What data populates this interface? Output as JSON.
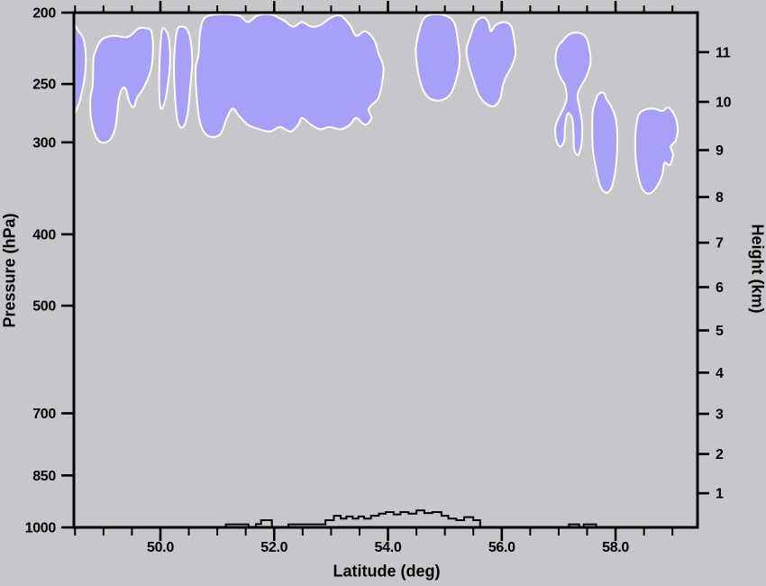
{
  "chart_data": {
    "type": "filled-contour cross-section (cloud occurrence vs latitude and pressure)",
    "title": "",
    "xlabel": "Latitude (deg)",
    "ylabel_left": "Pressure (hPa)",
    "ylabel_right": "Height (km)",
    "x_axis": {
      "min": 48.48,
      "max": 59.44,
      "major_ticks": [
        50.0,
        52.0,
        54.0,
        56.0,
        58.0
      ],
      "major_tick_labels": [
        "50.0",
        "52.0",
        "54.0",
        "56.0",
        "58.0"
      ],
      "minor_tick_interval": 0.5,
      "minor_tick_start": 48.5,
      "minor_tick_end": 59.0
    },
    "y_axis_pressure": {
      "scale": "log",
      "min_hpa": 200,
      "max_hpa": 1000,
      "ticks": [
        200,
        250,
        300,
        400,
        500,
        700,
        850,
        1000
      ],
      "tick_labels": [
        "200",
        "250",
        "300",
        "400",
        "500",
        "700",
        "850",
        "1000"
      ]
    },
    "y_axis_height_km": {
      "ticks": [
        1,
        2,
        3,
        4,
        5,
        6,
        7,
        8,
        9,
        10,
        11
      ],
      "tick_labels": [
        "1",
        "2",
        "3",
        "4",
        "5",
        "6",
        "7",
        "8",
        "9",
        "10",
        "11"
      ],
      "note": "height ticks follow ICAO standard atmosphere mapping to log-pressure axis"
    },
    "colors": {
      "background": "#c7c7cb",
      "cloud_fill": "#a6a0f8",
      "cloud_outline": "#ffffff",
      "axis": "#000000",
      "terrain_line": "#000000"
    },
    "grid": "off",
    "legend": "none",
    "cloud_regions": [
      {
        "name": "left-edge sliver",
        "points": [
          [
            48.4,
            210
          ],
          [
            48.58,
            213
          ],
          [
            48.66,
            219
          ],
          [
            48.69,
            232
          ],
          [
            48.66,
            248
          ],
          [
            48.61,
            258
          ],
          [
            48.55,
            268
          ],
          [
            48.4,
            274
          ]
        ]
      },
      {
        "name": "left blob 49-50deg",
        "points": [
          [
            48.81,
            251
          ],
          [
            48.82,
            235
          ],
          [
            48.84,
            228
          ],
          [
            48.96,
            218
          ],
          [
            49.16,
            215
          ],
          [
            49.4,
            216
          ],
          [
            49.5,
            214
          ],
          [
            49.62,
            210
          ],
          [
            49.74,
            210
          ],
          [
            49.84,
            212
          ],
          [
            49.87,
            224
          ],
          [
            49.84,
            238
          ],
          [
            49.76,
            248
          ],
          [
            49.68,
            255
          ],
          [
            49.59,
            261
          ],
          [
            49.53,
            269
          ],
          [
            49.45,
            264
          ],
          [
            49.4,
            255
          ],
          [
            49.34,
            253
          ],
          [
            49.27,
            262
          ],
          [
            49.21,
            286
          ],
          [
            49.11,
            298
          ],
          [
            48.96,
            300
          ],
          [
            48.86,
            294
          ],
          [
            48.78,
            278
          ],
          [
            48.77,
            262
          ]
        ]
      },
      {
        "name": "strip at 50.1deg",
        "points": [
          [
            50.03,
            211
          ],
          [
            50.12,
            213
          ],
          [
            50.16,
            220
          ],
          [
            50.17,
            234
          ],
          [
            50.13,
            251
          ],
          [
            50.08,
            264
          ],
          [
            50.01,
            270
          ],
          [
            49.98,
            255
          ],
          [
            49.99,
            230
          ]
        ]
      },
      {
        "name": "strip at 50.4deg",
        "points": [
          [
            50.29,
            212
          ],
          [
            50.38,
            209
          ],
          [
            50.47,
            211
          ],
          [
            50.53,
            218
          ],
          [
            50.56,
            234
          ],
          [
            50.52,
            255
          ],
          [
            50.48,
            274
          ],
          [
            50.4,
            286
          ],
          [
            50.31,
            282
          ],
          [
            50.26,
            262
          ],
          [
            50.24,
            234
          ]
        ]
      },
      {
        "name": "main mass 50.7-53.9deg",
        "points": [
          [
            50.67,
            228
          ],
          [
            50.7,
            212
          ],
          [
            50.79,
            203
          ],
          [
            51.06,
            201
          ],
          [
            51.38,
            202
          ],
          [
            51.54,
            206
          ],
          [
            51.7,
            202
          ],
          [
            51.93,
            201
          ],
          [
            52.17,
            205
          ],
          [
            52.33,
            209
          ],
          [
            52.49,
            206
          ],
          [
            52.65,
            209
          ],
          [
            52.81,
            208
          ],
          [
            53.01,
            203
          ],
          [
            53.17,
            202
          ],
          [
            53.33,
            208
          ],
          [
            53.44,
            215
          ],
          [
            53.6,
            212
          ],
          [
            53.76,
            218
          ],
          [
            53.84,
            228
          ],
          [
            53.92,
            237
          ],
          [
            53.89,
            251
          ],
          [
            53.82,
            262
          ],
          [
            53.66,
            270
          ],
          [
            53.71,
            278
          ],
          [
            53.6,
            284
          ],
          [
            53.44,
            278
          ],
          [
            53.33,
            284
          ],
          [
            53.17,
            288
          ],
          [
            52.97,
            286
          ],
          [
            52.81,
            288
          ],
          [
            52.65,
            284
          ],
          [
            52.49,
            278
          ],
          [
            52.42,
            284
          ],
          [
            52.29,
            290
          ],
          [
            52.1,
            286
          ],
          [
            51.93,
            290
          ],
          [
            51.74,
            288
          ],
          [
            51.54,
            284
          ],
          [
            51.38,
            276
          ],
          [
            51.27,
            270
          ],
          [
            51.17,
            278
          ],
          [
            51.06,
            292
          ],
          [
            50.9,
            295
          ],
          [
            50.76,
            290
          ],
          [
            50.68,
            278
          ],
          [
            50.63,
            255
          ],
          [
            50.62,
            238
          ]
        ]
      },
      {
        "name": "blob at 54.9deg",
        "points": [
          [
            54.57,
            209
          ],
          [
            54.65,
            203
          ],
          [
            54.81,
            201
          ],
          [
            55.02,
            202
          ],
          [
            55.16,
            206
          ],
          [
            55.22,
            216
          ],
          [
            55.26,
            233
          ],
          [
            55.19,
            248
          ],
          [
            55.1,
            258
          ],
          [
            54.94,
            263
          ],
          [
            54.75,
            262
          ],
          [
            54.62,
            255
          ],
          [
            54.53,
            241
          ],
          [
            54.49,
            224
          ]
        ]
      },
      {
        "name": "blob at 55.8deg",
        "points": [
          [
            55.45,
            215
          ],
          [
            55.54,
            206
          ],
          [
            55.67,
            203
          ],
          [
            55.76,
            206
          ],
          [
            55.81,
            212
          ],
          [
            55.89,
            208
          ],
          [
            56.05,
            206
          ],
          [
            56.17,
            209
          ],
          [
            56.22,
            218
          ],
          [
            56.24,
            228
          ],
          [
            56.17,
            237
          ],
          [
            56.08,
            244
          ],
          [
            56.02,
            251
          ],
          [
            55.97,
            262
          ],
          [
            55.86,
            268
          ],
          [
            55.73,
            266
          ],
          [
            55.6,
            259
          ],
          [
            55.51,
            248
          ],
          [
            55.41,
            234
          ],
          [
            55.38,
            224
          ]
        ]
      },
      {
        "name": "blob with tail at 57.2deg",
        "points": [
          [
            57.08,
            218
          ],
          [
            57.19,
            214
          ],
          [
            57.35,
            213
          ],
          [
            57.48,
            216
          ],
          [
            57.54,
            224
          ],
          [
            57.56,
            234
          ],
          [
            57.49,
            244
          ],
          [
            57.4,
            251
          ],
          [
            57.33,
            259
          ],
          [
            57.37,
            270
          ],
          [
            57.41,
            282
          ],
          [
            57.41,
            298
          ],
          [
            57.37,
            309
          ],
          [
            57.32,
            312
          ],
          [
            57.27,
            306
          ],
          [
            57.26,
            292
          ],
          [
            57.24,
            279
          ],
          [
            57.16,
            274
          ],
          [
            57.11,
            286
          ],
          [
            57.1,
            298
          ],
          [
            57.03,
            304
          ],
          [
            56.97,
            300
          ],
          [
            56.94,
            292
          ],
          [
            56.95,
            284
          ],
          [
            57.02,
            276
          ],
          [
            57.1,
            268
          ],
          [
            57.14,
            261
          ],
          [
            57.11,
            251
          ],
          [
            57.02,
            244
          ],
          [
            56.95,
            234
          ],
          [
            56.97,
            224
          ]
        ]
      },
      {
        "name": "oval at 57.8deg",
        "points": [
          [
            57.7,
            258
          ],
          [
            57.79,
            257
          ],
          [
            57.84,
            262
          ],
          [
            57.92,
            268
          ],
          [
            58.0,
            278
          ],
          [
            58.03,
            294
          ],
          [
            58.02,
            315
          ],
          [
            57.98,
            334
          ],
          [
            57.92,
            347
          ],
          [
            57.83,
            351
          ],
          [
            57.73,
            344
          ],
          [
            57.65,
            324
          ],
          [
            57.6,
            306
          ],
          [
            57.59,
            286
          ],
          [
            57.6,
            272
          ],
          [
            57.65,
            263
          ]
        ]
      },
      {
        "name": "blob at 58.7deg",
        "points": [
          [
            58.4,
            276
          ],
          [
            58.51,
            271
          ],
          [
            58.67,
            270
          ],
          [
            58.82,
            272
          ],
          [
            58.92,
            269
          ],
          [
            59.03,
            275
          ],
          [
            59.09,
            286
          ],
          [
            59.06,
            298
          ],
          [
            58.97,
            304
          ],
          [
            59.01,
            312
          ],
          [
            58.95,
            322
          ],
          [
            58.86,
            320
          ],
          [
            58.82,
            332
          ],
          [
            58.73,
            344
          ],
          [
            58.6,
            352
          ],
          [
            58.48,
            348
          ],
          [
            58.4,
            334
          ],
          [
            58.35,
            312
          ],
          [
            58.35,
            292
          ]
        ]
      }
    ],
    "terrain_profile": {
      "units": "latitude_deg_from, latitude_deg_to, height_km",
      "segments": [
        [
          51.15,
          51.55,
          0.09
        ],
        [
          51.68,
          51.77,
          0.1
        ],
        [
          51.77,
          51.96,
          0.21
        ],
        [
          52.25,
          52.9,
          0.09
        ],
        [
          52.9,
          53.05,
          0.21
        ],
        [
          53.05,
          53.17,
          0.34
        ],
        [
          53.17,
          53.27,
          0.26
        ],
        [
          53.27,
          53.38,
          0.32
        ],
        [
          53.38,
          53.48,
          0.26
        ],
        [
          53.48,
          53.58,
          0.32
        ],
        [
          53.58,
          53.7,
          0.26
        ],
        [
          53.7,
          53.84,
          0.34
        ],
        [
          53.84,
          53.96,
          0.4
        ],
        [
          53.96,
          54.1,
          0.45
        ],
        [
          54.1,
          54.22,
          0.38
        ],
        [
          54.22,
          54.36,
          0.45
        ],
        [
          54.36,
          54.5,
          0.4
        ],
        [
          54.5,
          54.64,
          0.5
        ],
        [
          54.64,
          54.78,
          0.42
        ],
        [
          54.78,
          54.94,
          0.45
        ],
        [
          54.94,
          55.06,
          0.34
        ],
        [
          55.06,
          55.2,
          0.26
        ],
        [
          55.2,
          55.34,
          0.21
        ],
        [
          55.34,
          55.5,
          0.3
        ],
        [
          55.5,
          55.62,
          0.21
        ],
        [
          57.18,
          57.36,
          0.09
        ],
        [
          57.44,
          57.66,
          0.09
        ]
      ]
    }
  }
}
